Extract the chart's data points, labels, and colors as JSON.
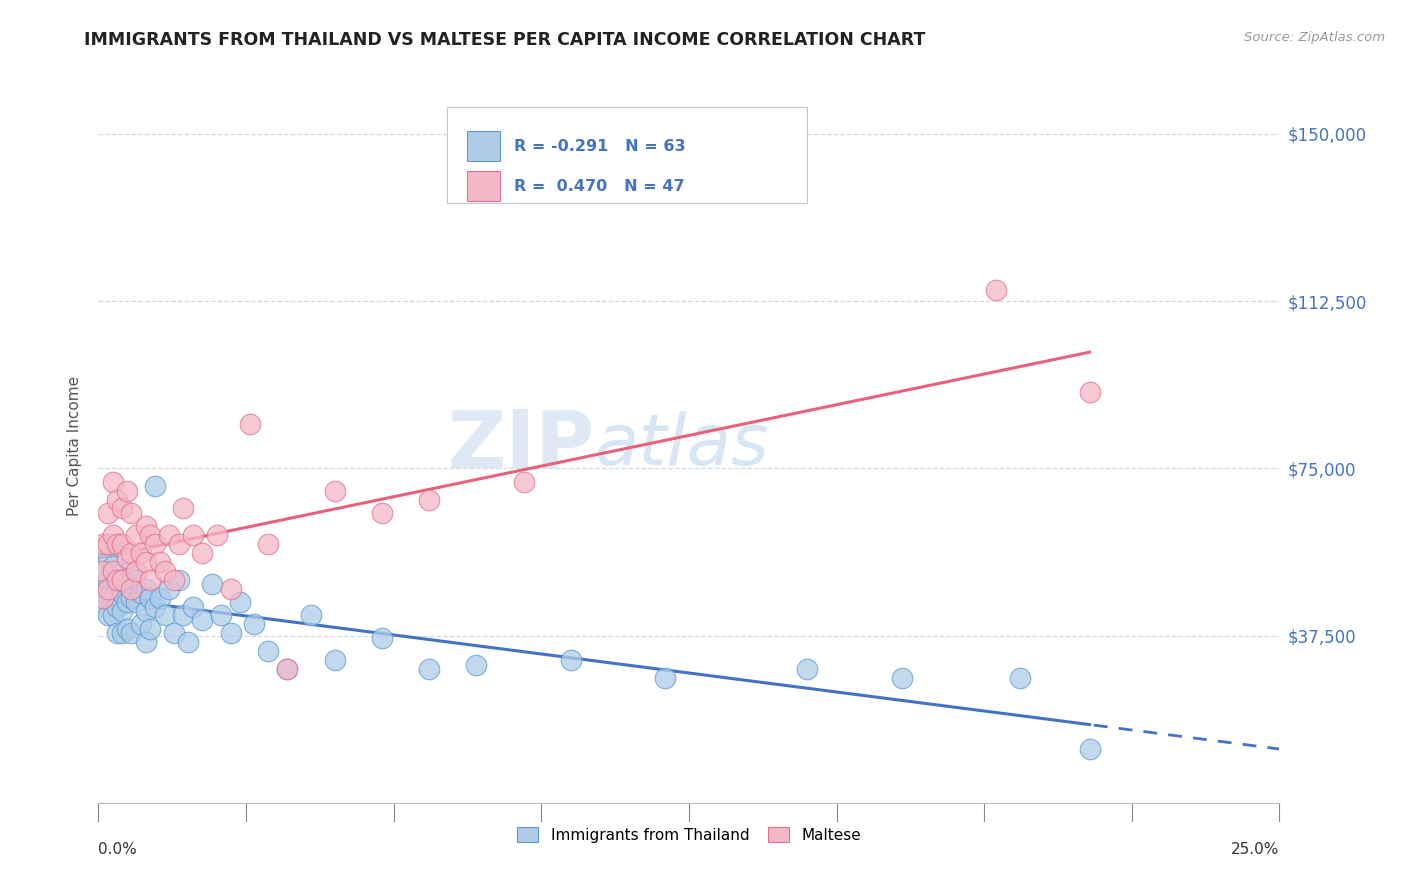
{
  "title": "IMMIGRANTS FROM THAILAND VS MALTESE PER CAPITA INCOME CORRELATION CHART",
  "source": "Source: ZipAtlas.com",
  "ylabel": "Per Capita Income",
  "ytick_vals": [
    0,
    37500,
    75000,
    112500,
    150000
  ],
  "ytick_labels": [
    "",
    "$37,500",
    "$75,000",
    "$112,500",
    "$150,000"
  ],
  "xmin": 0.0,
  "xmax": 0.25,
  "ymin": 0,
  "ymax": 160000,
  "watermark_zip": "ZIP",
  "watermark_atlas": "atlas",
  "legend_line1": "R = -0.291   N = 63",
  "legend_line2": "R =  0.470   N = 47",
  "blue_fill": "#aecce8",
  "blue_edge": "#5b9bd5",
  "pink_fill": "#f4b8c8",
  "pink_edge": "#e07090",
  "line_blue_color": "#4472c4",
  "line_pink_color": "#e8607a",
  "title_color": "#222222",
  "right_label_color": "#4472c4",
  "source_color": "#999999",
  "thailand_x": [
    0.001,
    0.001,
    0.001,
    0.002,
    0.002,
    0.002,
    0.002,
    0.003,
    0.003,
    0.003,
    0.003,
    0.004,
    0.004,
    0.004,
    0.004,
    0.005,
    0.005,
    0.005,
    0.005,
    0.006,
    0.006,
    0.006,
    0.007,
    0.007,
    0.007,
    0.008,
    0.008,
    0.009,
    0.009,
    0.01,
    0.01,
    0.01,
    0.011,
    0.011,
    0.012,
    0.012,
    0.013,
    0.014,
    0.015,
    0.016,
    0.017,
    0.018,
    0.019,
    0.02,
    0.022,
    0.024,
    0.026,
    0.028,
    0.03,
    0.033,
    0.036,
    0.04,
    0.045,
    0.05,
    0.06,
    0.07,
    0.08,
    0.1,
    0.12,
    0.15,
    0.17,
    0.195,
    0.21
  ],
  "thailand_y": [
    52000,
    47000,
    44000,
    55000,
    50000,
    46000,
    42000,
    53000,
    49000,
    46000,
    42000,
    51000,
    48000,
    44000,
    38000,
    50000,
    47000,
    43000,
    38000,
    49000,
    45000,
    39000,
    52000,
    46000,
    38000,
    50000,
    45000,
    47000,
    40000,
    48000,
    43000,
    36000,
    46000,
    39000,
    71000,
    44000,
    46000,
    42000,
    48000,
    38000,
    50000,
    42000,
    36000,
    44000,
    41000,
    49000,
    42000,
    38000,
    45000,
    40000,
    34000,
    30000,
    42000,
    32000,
    37000,
    30000,
    31000,
    32000,
    28000,
    30000,
    28000,
    28000,
    12000
  ],
  "maltese_x": [
    0.001,
    0.001,
    0.001,
    0.002,
    0.002,
    0.002,
    0.003,
    0.003,
    0.003,
    0.004,
    0.004,
    0.004,
    0.005,
    0.005,
    0.005,
    0.006,
    0.006,
    0.007,
    0.007,
    0.007,
    0.008,
    0.008,
    0.009,
    0.01,
    0.01,
    0.011,
    0.011,
    0.012,
    0.013,
    0.014,
    0.015,
    0.016,
    0.017,
    0.018,
    0.02,
    0.022,
    0.025,
    0.028,
    0.032,
    0.036,
    0.04,
    0.05,
    0.06,
    0.07,
    0.09,
    0.19,
    0.21
  ],
  "maltese_y": [
    58000,
    52000,
    46000,
    65000,
    58000,
    48000,
    72000,
    60000,
    52000,
    68000,
    58000,
    50000,
    66000,
    58000,
    50000,
    70000,
    55000,
    65000,
    56000,
    48000,
    60000,
    52000,
    56000,
    62000,
    54000,
    60000,
    50000,
    58000,
    54000,
    52000,
    60000,
    50000,
    58000,
    66000,
    60000,
    56000,
    60000,
    48000,
    85000,
    58000,
    30000,
    70000,
    65000,
    68000,
    72000,
    115000,
    92000
  ]
}
